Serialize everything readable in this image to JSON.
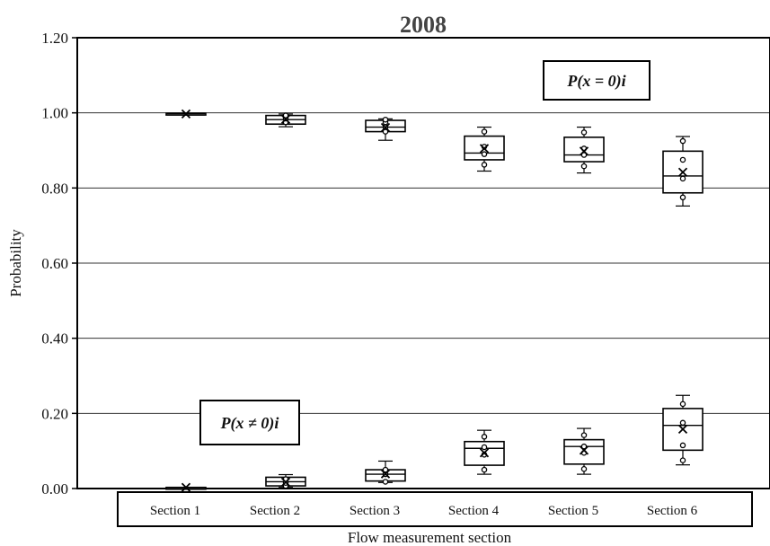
{
  "chart_data": {
    "type": "box",
    "title": "2008",
    "xlabel": "Flow measurement section",
    "ylabel": "Probability",
    "ylim": [
      0,
      1.2
    ],
    "yticks": [
      "0.00",
      "0.20",
      "0.40",
      "0.60",
      "0.80",
      "1.00",
      "1.20"
    ],
    "ytick_values": [
      0,
      0.2,
      0.4,
      0.6,
      0.8,
      1.0,
      1.2
    ],
    "grid": true,
    "categories": [
      "Section 1",
      "Section 2",
      "Section 3",
      "Section 4",
      "Section 5",
      "Section 6"
    ],
    "series": [
      {
        "name": "P(x = 0)i",
        "boxes": [
          {
            "min": 0.997,
            "q1": 0.997,
            "median": 0.998,
            "q3": 0.999,
            "max": 0.999,
            "mean": 0.997,
            "points": []
          },
          {
            "min": 0.963,
            "q1": 0.97,
            "median": 0.982,
            "q3": 0.993,
            "max": 0.997,
            "mean": 0.983,
            "points": [
              0.975,
              0.985,
              0.993
            ]
          },
          {
            "min": 0.927,
            "q1": 0.95,
            "median": 0.962,
            "q3": 0.98,
            "max": 0.984,
            "mean": 0.961,
            "points": [
              0.95,
              0.962,
              0.975,
              0.982
            ]
          },
          {
            "min": 0.845,
            "q1": 0.875,
            "median": 0.893,
            "q3": 0.938,
            "max": 0.962,
            "mean": 0.905,
            "points": [
              0.862,
              0.89,
              0.91,
              0.95
            ]
          },
          {
            "min": 0.84,
            "q1": 0.87,
            "median": 0.888,
            "q3": 0.935,
            "max": 0.962,
            "mean": 0.898,
            "points": [
              0.858,
              0.888,
              0.905,
              0.948
            ]
          },
          {
            "min": 0.752,
            "q1": 0.787,
            "median": 0.832,
            "q3": 0.898,
            "max": 0.937,
            "mean": 0.842,
            "points": [
              0.775,
              0.825,
              0.875,
              0.925
            ]
          }
        ]
      },
      {
        "name": "P(x ≠ 0)i",
        "boxes": [
          {
            "min": 0.001,
            "q1": 0.001,
            "median": 0.002,
            "q3": 0.003,
            "max": 0.003,
            "mean": 0.003,
            "points": []
          },
          {
            "min": 0.003,
            "q1": 0.007,
            "median": 0.018,
            "q3": 0.03,
            "max": 0.037,
            "mean": 0.017,
            "points": [
              0.007,
              0.015,
              0.025
            ]
          },
          {
            "min": 0.016,
            "q1": 0.02,
            "median": 0.038,
            "q3": 0.05,
            "max": 0.073,
            "mean": 0.039,
            "points": [
              0.018,
              0.038,
              0.05
            ]
          },
          {
            "min": 0.038,
            "q1": 0.062,
            "median": 0.107,
            "q3": 0.125,
            "max": 0.155,
            "mean": 0.095,
            "points": [
              0.05,
              0.09,
              0.11,
              0.138
            ]
          },
          {
            "min": 0.038,
            "q1": 0.065,
            "median": 0.112,
            "q3": 0.13,
            "max": 0.16,
            "mean": 0.102,
            "points": [
              0.052,
              0.095,
              0.112,
              0.142
            ]
          },
          {
            "min": 0.063,
            "q1": 0.102,
            "median": 0.168,
            "q3": 0.213,
            "max": 0.248,
            "mean": 0.158,
            "points": [
              0.075,
              0.115,
              0.175,
              0.225
            ]
          }
        ]
      }
    ],
    "annotations": [
      "P(x = 0)i",
      "P(x ≠ 0)i"
    ]
  }
}
